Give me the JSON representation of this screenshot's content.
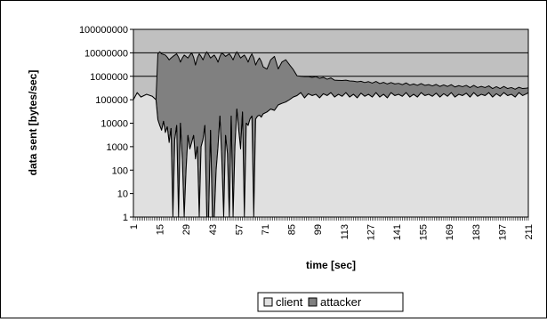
{
  "chart_data": {
    "type": "area",
    "xlabel": "time [sec]",
    "ylabel": "data sent [bytes/sec]",
    "yscale": "log",
    "ylim": [
      1,
      100000000
    ],
    "xlim": [
      1,
      211
    ],
    "x_tick_labels": [
      "1",
      "15",
      "29",
      "43",
      "57",
      "71",
      "85",
      "99",
      "113",
      "127",
      "141",
      "155",
      "169",
      "183",
      "197",
      "211"
    ],
    "y_tick_labels": [
      "1",
      "10",
      "100",
      "1000",
      "10000",
      "100000",
      "1000000",
      "10000000",
      "100000000"
    ],
    "x_step": 1,
    "grid": "horizontal",
    "legend_position": "bottom",
    "stacked": true,
    "colors": {
      "plot_background": "#c0c0c0",
      "client": "#e0e0e0",
      "attacker": "#808080",
      "outline": "#000000",
      "gridline": "#000000"
    },
    "series": [
      {
        "name": "client",
        "x": [
          1,
          3,
          5,
          8,
          11,
          13,
          14,
          15,
          16,
          17,
          18,
          19,
          20,
          21,
          22,
          23,
          24,
          25,
          26,
          27,
          28,
          29,
          30,
          31,
          32,
          33,
          34,
          35,
          36,
          37,
          38,
          39,
          40,
          41,
          42,
          43,
          44,
          45,
          46,
          47,
          48,
          49,
          50,
          51,
          52,
          53,
          54,
          55,
          56,
          57,
          58,
          59,
          60,
          61,
          62,
          63,
          64,
          65,
          66,
          67,
          68,
          69,
          70,
          72,
          74,
          76,
          78,
          80,
          82,
          84,
          86,
          88,
          90,
          92,
          94,
          96,
          98,
          100,
          102,
          104,
          106,
          108,
          110,
          112,
          114,
          116,
          118,
          120,
          122,
          124,
          126,
          128,
          130,
          132,
          134,
          136,
          138,
          140,
          142,
          144,
          146,
          148,
          150,
          152,
          154,
          156,
          158,
          160,
          162,
          164,
          166,
          168,
          170,
          172,
          174,
          176,
          178,
          180,
          182,
          184,
          186,
          188,
          190,
          192,
          194,
          196,
          198,
          200,
          202,
          204,
          206,
          208,
          210,
          211
        ],
        "values": [
          100000,
          200000,
          130000,
          170000,
          140000,
          100000,
          14000,
          8000,
          5000,
          12000,
          4000,
          7000,
          1500,
          6000,
          1,
          2000,
          8000,
          1,
          10000,
          300,
          1,
          100,
          3000,
          800,
          1500,
          3000,
          300,
          1000,
          1,
          1000,
          2000,
          8000,
          1,
          1,
          5000,
          1,
          1,
          100,
          1000,
          20000,
          300,
          1,
          3000,
          500,
          1,
          20000,
          1,
          1000,
          40000,
          5000,
          800,
          30000,
          1,
          10000,
          8000,
          15000,
          20000,
          1,
          15000,
          20000,
          22000,
          18000,
          25000,
          30000,
          40000,
          35000,
          60000,
          70000,
          80000,
          100000,
          130000,
          150000,
          200000,
          120000,
          180000,
          150000,
          170000,
          120000,
          180000,
          150000,
          200000,
          130000,
          170000,
          140000,
          200000,
          130000,
          170000,
          120000,
          190000,
          140000,
          170000,
          130000,
          200000,
          130000,
          170000,
          120000,
          200000,
          150000,
          170000,
          140000,
          200000,
          130000,
          170000,
          130000,
          200000,
          150000,
          170000,
          140000,
          190000,
          130000,
          180000,
          140000,
          200000,
          130000,
          170000,
          150000,
          190000,
          130000,
          200000,
          140000,
          170000,
          150000,
          200000,
          130000,
          180000,
          140000,
          200000,
          150000,
          170000,
          130000,
          200000,
          150000,
          180000,
          200000
        ]
      },
      {
        "name": "attacker",
        "x": [
          1,
          3,
          5,
          8,
          11,
          13,
          14,
          15,
          16,
          18,
          20,
          22,
          24,
          26,
          28,
          30,
          32,
          34,
          36,
          38,
          40,
          42,
          44,
          46,
          48,
          50,
          52,
          54,
          56,
          58,
          60,
          62,
          64,
          66,
          68,
          70,
          72,
          74,
          76,
          78,
          80,
          82,
          84,
          86,
          88,
          90,
          92,
          94,
          96,
          98,
          100,
          102,
          104,
          106,
          108,
          110,
          112,
          114,
          116,
          118,
          120,
          122,
          124,
          126,
          128,
          130,
          132,
          134,
          136,
          138,
          140,
          142,
          144,
          146,
          148,
          150,
          152,
          154,
          156,
          158,
          160,
          162,
          164,
          166,
          168,
          170,
          172,
          174,
          176,
          178,
          180,
          182,
          184,
          186,
          188,
          190,
          192,
          194,
          196,
          198,
          200,
          202,
          204,
          206,
          208,
          210,
          211
        ],
        "values": [
          0,
          0,
          0,
          0,
          0,
          0,
          9000000,
          11000000,
          9000000,
          8000000,
          5000000,
          7000000,
          9000000,
          4000000,
          8000000,
          6000000,
          10000000,
          3000000,
          9000000,
          5000000,
          11000000,
          6000000,
          8000000,
          4000000,
          10000000,
          7000000,
          9000000,
          5000000,
          11000000,
          6000000,
          8000000,
          4000000,
          9000000,
          3000000,
          6000000,
          2500000,
          2000000,
          5000000,
          7000000,
          2000000,
          4000000,
          5000000,
          3000000,
          1800000,
          900000,
          800000,
          850000,
          800000,
          750000,
          800000,
          700000,
          720000,
          600000,
          650000,
          550000,
          500000,
          520000,
          480000,
          500000,
          450000,
          460000,
          420000,
          400000,
          420000,
          380000,
          400000,
          360000,
          380000,
          350000,
          340000,
          320000,
          330000,
          300000,
          320000,
          290000,
          300000,
          280000,
          290000,
          260000,
          270000,
          250000,
          260000,
          240000,
          250000,
          230000,
          240000,
          220000,
          230000,
          210000,
          220000,
          200000,
          210000,
          190000,
          200000,
          180000,
          190000,
          170000,
          180000,
          160000,
          170000,
          150000,
          160000,
          150000,
          140000,
          150000,
          130000,
          120000
        ]
      }
    ]
  }
}
